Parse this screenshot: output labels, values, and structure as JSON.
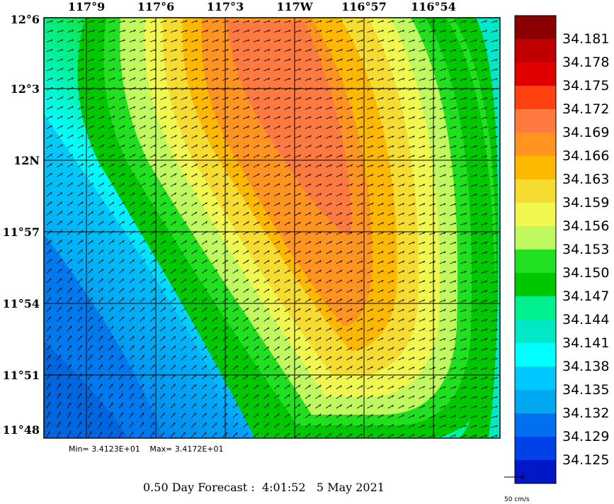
{
  "map": {
    "lon_labels": [
      "117°9",
      "117°6",
      "117°3",
      "117W",
      "116°57",
      "116°54"
    ],
    "lat_labels": [
      "12°6",
      "12°3",
      "12N",
      "11°57",
      "11°54",
      "11°51",
      "11°48"
    ]
  },
  "colorbar": {
    "labels": [
      "34.181",
      "34.178",
      "34.175",
      "34.172",
      "34.169",
      "34.166",
      "34.163",
      "34.159",
      "34.156",
      "34.153",
      "34.150",
      "34.147",
      "34.144",
      "34.141",
      "34.138",
      "34.135",
      "34.132",
      "34.129",
      "34.125"
    ],
    "colors": [
      "#8b0000",
      "#c00000",
      "#e00000",
      "#ff4010",
      "#ff7a40",
      "#ff9420",
      "#ffb800",
      "#f6dc30",
      "#f0f850",
      "#c0f860",
      "#20e020",
      "#00c800",
      "#00f090",
      "#00e8c8",
      "#00ffff",
      "#00c8ff",
      "#00a8f0",
      "#0070f0",
      "#0040e8",
      "#0018c8"
    ]
  },
  "stats": {
    "min": "Min= 3.4123E+01",
    "max": "Max= 3.4172E+01"
  },
  "forecast": {
    "label": "0.50 Day Forecast :",
    "time": "4:01:52",
    "date": "5 May 2021"
  },
  "scale": {
    "label": "50 cm/s"
  }
}
